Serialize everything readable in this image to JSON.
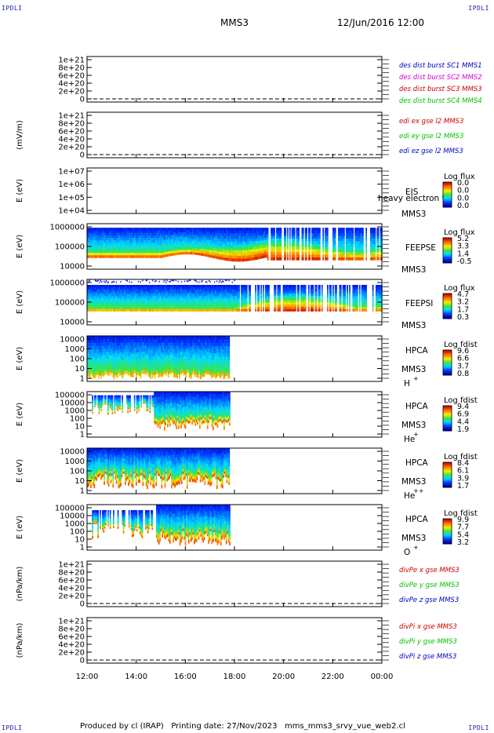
{
  "corner_label": "IPDLI",
  "header": {
    "spacecraft": "MMS3",
    "datetime": "12/Jun/2016 12:00"
  },
  "footer": {
    "text": "Produced by cl (IRAP)   Printing date: 27/Nov/2023   mms_mms3_srvy_vue_web2.cl"
  },
  "colors": {
    "red": "#cc0000",
    "magenta": "#d000d0",
    "green": "#00c000",
    "blue": "#0000c0"
  },
  "chart_data": {
    "type": "heatmap",
    "x_ticks": [
      "12:00",
      "14:00",
      "16:00",
      "18:00",
      "20:00",
      "22:00",
      "00:00"
    ],
    "xlim": [
      "12:00",
      "00:00"
    ],
    "panels": [
      {
        "ylabel": "",
        "yticks": [
          "1e+21",
          "8e+20",
          "6e+20",
          "4e+20",
          "2e+20",
          "0"
        ],
        "legend": [
          {
            "text": "des dist burst SC1 MMS1",
            "color": "#0000c0"
          },
          {
            "text": "des dist burst SC2 MMS2",
            "color": "#d000d0"
          },
          {
            "text": "des dist burst SC3 MMS3",
            "color": "#cc0000"
          },
          {
            "text": "des dist burst SC4 MMS4",
            "color": "#00c000"
          }
        ]
      },
      {
        "ylabel": "(mV/m)",
        "yticks": [
          "1e+21",
          "8e+20",
          "6e+20",
          "4e+20",
          "2e+20",
          "0"
        ],
        "legend": [
          {
            "text": "edi ex gse l2 MMS3",
            "color": "#cc0000"
          },
          {
            "text": "edi ey gse l2 MMS3",
            "color": "#00c000"
          },
          {
            "text": "edi ez gse l2 MMS3",
            "color": "#0000c0"
          }
        ]
      },
      {
        "ylabel": "E (eV)",
        "yticks": [
          "1e+07",
          "1e+06",
          "1e+05",
          "1e+04"
        ],
        "instrument": "EIS",
        "spacecraft": "MMS3",
        "overlay": "heavy electron to",
        "cbar_title": "Log flux",
        "cbar_ticks": [
          "0.0",
          "0.0",
          "0.0",
          "0.0"
        ]
      },
      {
        "ylabel": "E (eV)",
        "yticks": [
          "1000000",
          "100000",
          "10000"
        ],
        "instrument": "FEEPSE",
        "spacecraft": "MMS3",
        "cbar_title": "Log flux",
        "cbar_ticks": [
          "5.2",
          "3.3",
          "1.4",
          "-0.5"
        ]
      },
      {
        "ylabel": "E (eV)",
        "yticks": [
          "1000000",
          "100000",
          "10000"
        ],
        "instrument": "FEEPSI",
        "spacecraft": "MMS3",
        "cbar_title": "Log flux",
        "cbar_ticks": [
          "4.7",
          "3.2",
          "1.7",
          "0.3"
        ]
      },
      {
        "ylabel": "E (eV)",
        "yticks": [
          "10000",
          "1000",
          "100",
          "10",
          "1"
        ],
        "instrument": "HPCA",
        "spacecraft": "MMS3",
        "species": "H",
        "charge": "+",
        "cbar_title": "Log fdist",
        "cbar_ticks": [
          "9.6",
          "6.6",
          "3.7",
          "0.8"
        ]
      },
      {
        "ylabel": "E (eV)",
        "yticks": [
          "100000",
          "10000",
          "1000",
          "100",
          "10",
          "1"
        ],
        "instrument": "HPCA",
        "spacecraft": "MMS3",
        "species": "He",
        "charge": "+",
        "cbar_title": "Log fdist",
        "cbar_ticks": [
          "9.4",
          "6.9",
          "4.4",
          "1.9"
        ]
      },
      {
        "ylabel": "E (eV)",
        "yticks": [
          "10000",
          "1000",
          "100",
          "10",
          "1"
        ],
        "instrument": "HPCA",
        "spacecraft": "MMS3",
        "species": "He",
        "charge": "++",
        "cbar_title": "Log fdist",
        "cbar_ticks": [
          "8.4",
          "6.1",
          "3.9",
          "1.7"
        ]
      },
      {
        "ylabel": "E (eV)",
        "yticks": [
          "100000",
          "10000",
          "1000",
          "100",
          "10",
          "1"
        ],
        "instrument": "HPCA",
        "spacecraft": "MMS3",
        "species": "O",
        "charge": "+",
        "cbar_title": "Log fdist",
        "cbar_ticks": [
          "9.9",
          "7.7",
          "5.4",
          "3.2"
        ]
      },
      {
        "ylabel": "(nPa/km)",
        "yticks": [
          "1e+21",
          "8e+20",
          "6e+20",
          "4e+20",
          "2e+20",
          "0"
        ],
        "legend": [
          {
            "text": "divPe x gse MMS3",
            "color": "#cc0000"
          },
          {
            "text": "divPe y gse MMS3",
            "color": "#00c000"
          },
          {
            "text": "divPe z gse MMS3",
            "color": "#0000c0"
          }
        ]
      },
      {
        "ylabel": "(nPa/km)",
        "yticks": [
          "1e+21",
          "8e+20",
          "6e+20",
          "4e+20",
          "2e+20",
          "0"
        ],
        "legend": [
          {
            "text": "divPi x gse MMS3",
            "color": "#cc0000"
          },
          {
            "text": "divPi y gse MMS3",
            "color": "#00c000"
          },
          {
            "text": "divPi z gse MMS3",
            "color": "#0000c0"
          }
        ]
      }
    ]
  }
}
